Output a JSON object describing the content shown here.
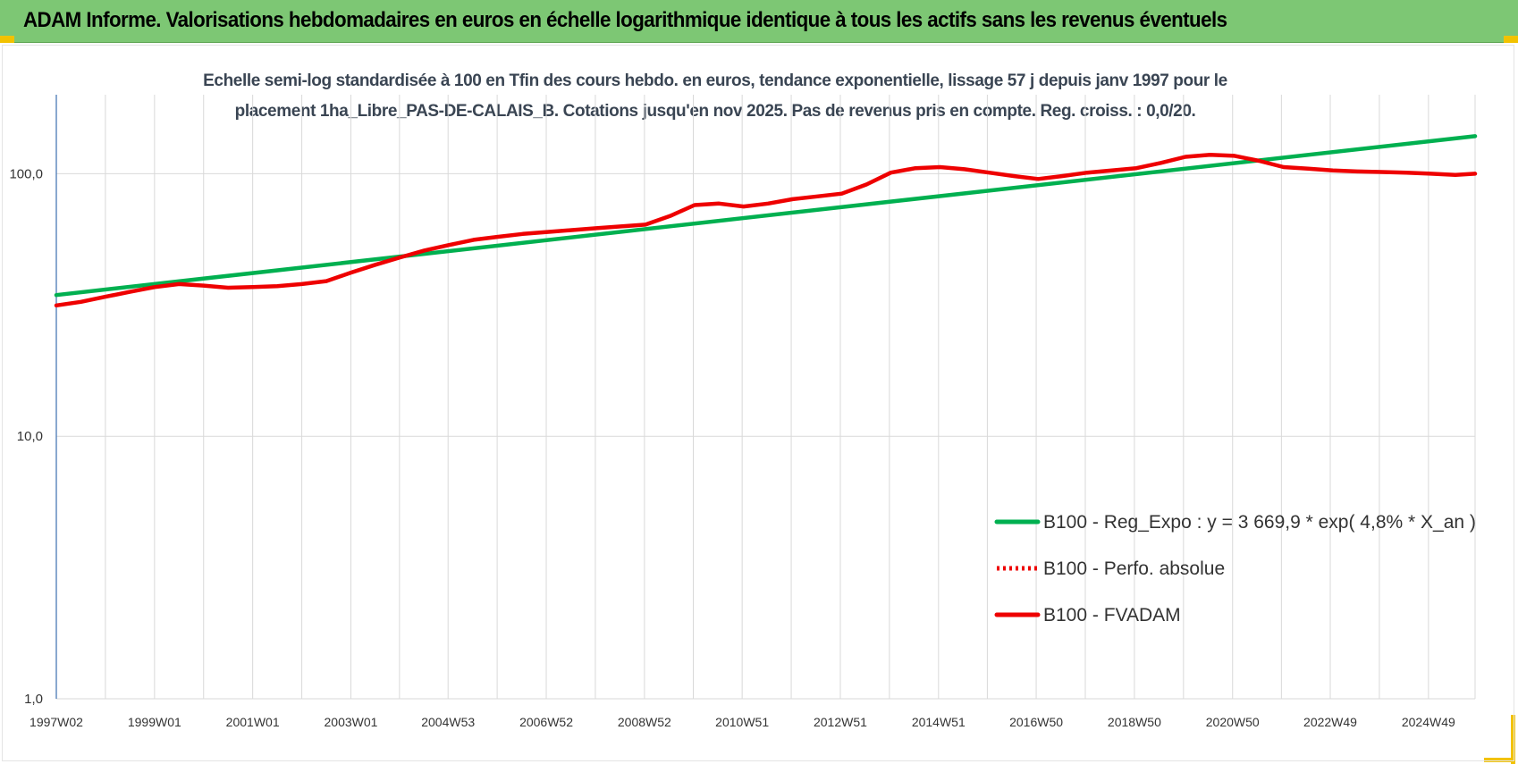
{
  "header": {
    "title": "ADAM Informe. Valorisations hebdomadaires en euros en échelle logarithmique identique à tous les actifs sans les revenus éventuels"
  },
  "colors": {
    "banner": "#7dc774",
    "trend": "#00b050",
    "series": "#ee0000",
    "grid": "#d9d9d9",
    "axis": "#4a7ab5"
  },
  "chart_data": {
    "type": "line",
    "title_lines": [
      "Echelle semi-log standardisée à 100 en Tfin des cours hebdo. en euros, tendance exponentielle, lissage 57 j depuis janv 1997 pour le",
      "placement 1ha_Libre_PAS-DE-CALAIS_B. Cotations jusqu'en nov 2025. Pas de revenus pris en compte. Reg. croiss. : 0,0/20."
    ],
    "y_scale": "log",
    "ylim": [
      1,
      200
    ],
    "y_ticks": [
      1,
      10,
      100
    ],
    "y_tick_labels": [
      "1,0",
      "10,0",
      "100,0"
    ],
    "xlim": [
      1997.0,
      2025.9
    ],
    "x_ticks": [
      1997.0,
      1999.0,
      2001.0,
      2003.0,
      2004.98,
      2006.98,
      2008.98,
      2010.97,
      2012.97,
      2014.97,
      2016.96,
      2018.96,
      2020.96,
      2022.95,
      2024.95
    ],
    "x_tick_labels": [
      "1997W02",
      "1999W01",
      "2001W01",
      "2003W01",
      "2004W53",
      "2006W52",
      "2008W52",
      "2010W51",
      "2012W51",
      "2014W51",
      "2016W50",
      "2018W50",
      "2020W50",
      "2022W49",
      "2024W49"
    ],
    "grid": true,
    "legend_position": "bottom-right",
    "series": [
      {
        "name": "B100 - Reg_Expo : y = 3 669,9 * exp( 4,8% *  X_an )",
        "style": "solid-green",
        "x": [
          1997.0,
          2025.9
        ],
        "y": [
          34.5,
          139.0
        ]
      },
      {
        "name": "B100 - Perfo. absolue",
        "style": "dotted-red",
        "x": [],
        "y": []
      },
      {
        "name": "B100 - FVADAM",
        "style": "solid-red",
        "x": [
          1997.0,
          1997.5,
          1998.0,
          1998.5,
          1999.0,
          1999.5,
          2000.0,
          2000.5,
          2001.0,
          2001.5,
          2002.0,
          2002.5,
          2003.0,
          2003.5,
          2004.0,
          2004.5,
          2005.0,
          2005.5,
          2006.0,
          2006.5,
          2007.0,
          2007.5,
          2008.0,
          2008.5,
          2009.0,
          2009.5,
          2010.0,
          2010.5,
          2011.0,
          2011.5,
          2012.0,
          2012.5,
          2013.0,
          2013.5,
          2014.0,
          2014.5,
          2015.0,
          2015.5,
          2016.0,
          2016.5,
          2017.0,
          2017.5,
          2018.0,
          2018.5,
          2019.0,
          2019.5,
          2020.0,
          2020.5,
          2021.0,
          2021.5,
          2022.0,
          2022.5,
          2023.0,
          2023.5,
          2024.0,
          2024.5,
          2025.0,
          2025.5,
          2025.9
        ],
        "y": [
          31.5,
          32.5,
          34.0,
          35.5,
          37.0,
          38.0,
          37.5,
          36.8,
          37.0,
          37.3,
          38.0,
          39.0,
          42.0,
          45.0,
          48.0,
          51.0,
          53.5,
          56.0,
          57.5,
          59.0,
          60.0,
          61.0,
          62.0,
          63.0,
          64.0,
          69.0,
          76.0,
          77.0,
          75.0,
          77.0,
          80.0,
          82.0,
          84.0,
          91.0,
          101.0,
          105.0,
          106.0,
          104.0,
          101.0,
          98.0,
          95.5,
          98.0,
          101.0,
          103.0,
          105.0,
          110.0,
          116.0,
          118.0,
          117.0,
          112.0,
          106.0,
          104.5,
          103.0,
          102.0,
          101.5,
          101.0,
          100.0,
          99.0,
          100.0
        ]
      }
    ]
  }
}
